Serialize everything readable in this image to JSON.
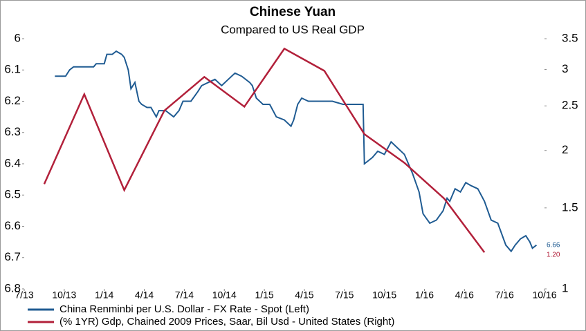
{
  "chart_data": {
    "type": "line",
    "title": "Chinese Yuan",
    "subtitle": "Compared to US Real GDP",
    "xlim": [
      0,
      39
    ],
    "xticks": [
      {
        "value": 0,
        "label": "7/13"
      },
      {
        "value": 3,
        "label": "10/13"
      },
      {
        "value": 6,
        "label": "1/14"
      },
      {
        "value": 9,
        "label": "4/14"
      },
      {
        "value": 12,
        "label": "7/14"
      },
      {
        "value": 15,
        "label": "10/14"
      },
      {
        "value": 18,
        "label": "1/15"
      },
      {
        "value": 21,
        "label": "4/15"
      },
      {
        "value": 24,
        "label": "7/15"
      },
      {
        "value": 27,
        "label": "10/15"
      },
      {
        "value": 30,
        "label": "1/16"
      },
      {
        "value": 33,
        "label": "4/16"
      },
      {
        "value": 36,
        "label": "7/16"
      },
      {
        "value": 39,
        "label": "10/16"
      }
    ],
    "ylim": [
      6,
      6.8
    ],
    "y_inverted": true,
    "yticks": [
      6,
      6.1,
      6.2,
      6.3,
      6.4,
      6.5,
      6.6,
      6.7,
      6.8
    ],
    "y2lim": [
      1,
      3.5
    ],
    "y2_log": true,
    "y2ticks": [
      1,
      1.5,
      2,
      2.5,
      3,
      3.5
    ],
    "grid": false,
    "legend": "bottom",
    "series": [
      {
        "name": "China Renminbi per U.S. Dollar - FX Rate - Spot  (Left)",
        "color": "#1f5b92",
        "axis": "y",
        "x": [
          2.3,
          3.1,
          3.4,
          3.7,
          4.1,
          4.7,
          5.2,
          5.4,
          6.0,
          6.2,
          6.6,
          6.9,
          7.3,
          7.5,
          7.8,
          8.0,
          8.3,
          8.6,
          8.8,
          9.2,
          9.5,
          9.9,
          10.1,
          10.6,
          11.2,
          11.6,
          11.9,
          12.5,
          13.0,
          13.3,
          13.8,
          14.3,
          14.8,
          15.3,
          15.8,
          16.3,
          16.9,
          17.1,
          17.4,
          17.9,
          18.4,
          18.9,
          19.5,
          20.0,
          20.2,
          20.5,
          20.8,
          21.3,
          21.8,
          22.3,
          23.1,
          23.9,
          24.6,
          25.4,
          25.5,
          25.8,
          26.1,
          26.5,
          27.0,
          27.5,
          28.0,
          28.5,
          29.1,
          29.6,
          29.9,
          30.4,
          30.9,
          31.4,
          31.7,
          31.9,
          32.3,
          32.7,
          33.1,
          33.5,
          34.0,
          34.5,
          35.0,
          35.5,
          36.1,
          36.5,
          36.8,
          37.2,
          37.6,
          37.9,
          38.1,
          38.4
        ],
        "values": [
          6.12,
          6.12,
          6.1,
          6.09,
          6.09,
          6.09,
          6.09,
          6.08,
          6.08,
          6.05,
          6.05,
          6.04,
          6.05,
          6.06,
          6.1,
          6.16,
          6.14,
          6.2,
          6.21,
          6.22,
          6.22,
          6.25,
          6.23,
          6.23,
          6.25,
          6.23,
          6.2,
          6.2,
          6.17,
          6.15,
          6.14,
          6.13,
          6.15,
          6.13,
          6.11,
          6.12,
          6.14,
          6.15,
          6.19,
          6.21,
          6.21,
          6.25,
          6.26,
          6.28,
          6.26,
          6.21,
          6.19,
          6.2,
          6.2,
          6.2,
          6.2,
          6.21,
          6.21,
          6.21,
          6.4,
          6.39,
          6.38,
          6.36,
          6.37,
          6.33,
          6.35,
          6.37,
          6.43,
          6.49,
          6.56,
          6.59,
          6.58,
          6.55,
          6.51,
          6.52,
          6.48,
          6.49,
          6.46,
          6.47,
          6.48,
          6.52,
          6.58,
          6.59,
          6.66,
          6.68,
          6.66,
          6.64,
          6.63,
          6.65,
          6.67,
          6.66
        ]
      },
      {
        "name": "(% 1YR) Gdp, Chained 2009 Prices, Saar, Bil Usd - United States  (Right)",
        "color": "#b2203a",
        "axis": "y2",
        "x": [
          1.5,
          4.5,
          7.5,
          10.5,
          13.5,
          16.5,
          19.5,
          22.5,
          25.5,
          28.5,
          31.5,
          34.5
        ],
        "values": [
          1.69,
          2.65,
          1.64,
          2.44,
          2.89,
          2.49,
          3.33,
          2.98,
          2.17,
          1.88,
          1.57,
          1.2
        ],
        "value_labels": [
          null,
          null,
          null,
          null,
          null,
          null,
          null,
          null,
          null,
          null,
          null,
          "1.20"
        ]
      }
    ]
  }
}
